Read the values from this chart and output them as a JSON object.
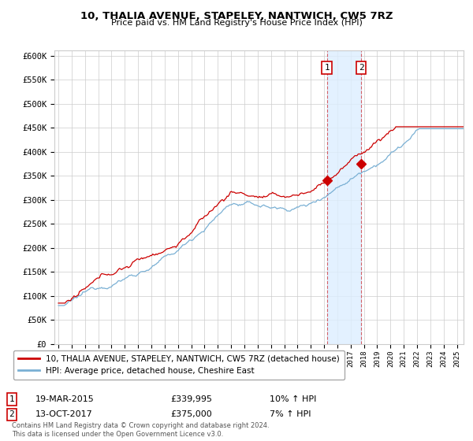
{
  "title": "10, THALIA AVENUE, STAPELEY, NANTWICH, CW5 7RZ",
  "subtitle": "Price paid vs. HM Land Registry's House Price Index (HPI)",
  "ylabel_ticks": [
    "£0",
    "£50K",
    "£100K",
    "£150K",
    "£200K",
    "£250K",
    "£300K",
    "£350K",
    "£400K",
    "£450K",
    "£500K",
    "£550K",
    "£600K"
  ],
  "ytick_values": [
    0,
    50000,
    100000,
    150000,
    200000,
    250000,
    300000,
    350000,
    400000,
    450000,
    500000,
    550000,
    600000
  ],
  "ylim": [
    0,
    610000
  ],
  "sale1_year": 2015.21,
  "sale1_price": 339995,
  "sale2_year": 2017.79,
  "sale2_price": 375000,
  "legend_line1": "10, THALIA AVENUE, STAPELEY, NANTWICH, CW5 7RZ (detached house)",
  "legend_line2": "HPI: Average price, detached house, Cheshire East",
  "footer": "Contains HM Land Registry data © Crown copyright and database right 2024.\nThis data is licensed under the Open Government Licence v3.0.",
  "line_color_red": "#cc0000",
  "line_color_blue": "#7ab0d4",
  "shade_color": "#ddeeff",
  "background_color": "#ffffff",
  "grid_color": "#cccccc",
  "ann1_date": "19-MAR-2015",
  "ann1_price": "£339,995",
  "ann1_hpi": "10% ↑ HPI",
  "ann2_date": "13-OCT-2017",
  "ann2_price": "£375,000",
  "ann2_hpi": "7% ↑ HPI"
}
